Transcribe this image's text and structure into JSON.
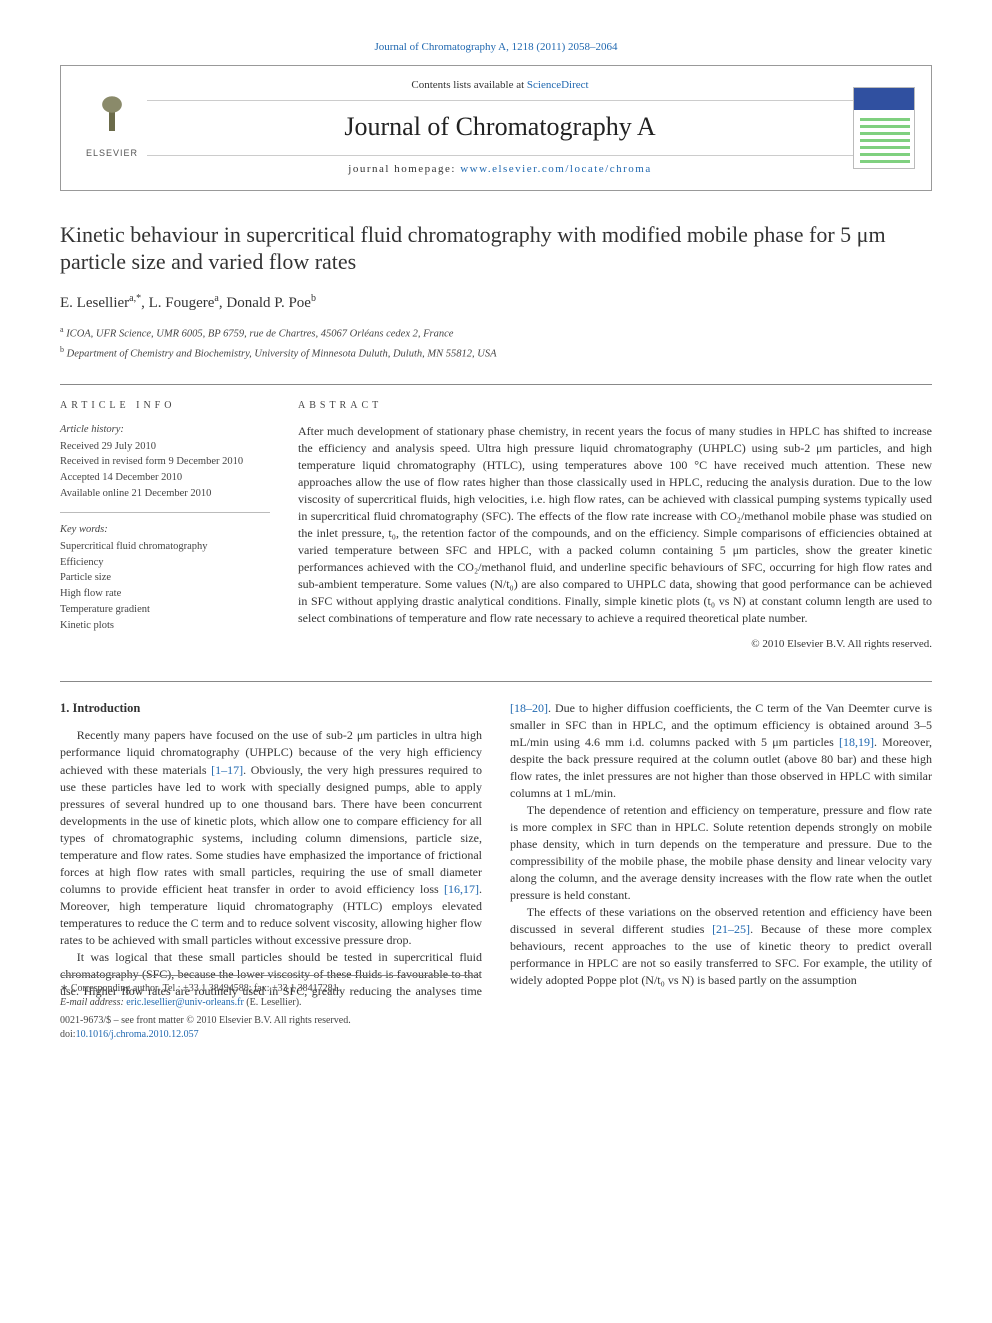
{
  "top_ref": {
    "journal": "Journal of Chromatography A",
    "citation": ", 1218 (2011) 2058–2064",
    "link_text": "Journal of Chromatography A"
  },
  "masthead": {
    "contents_prefix": "Contents lists available at ",
    "contents_link": "ScienceDirect",
    "journal_title": "Journal of Chromatography A",
    "homepage_prefix": "journal homepage: ",
    "homepage_link": "www.elsevier.com/locate/chroma",
    "elsevier_label": "ELSEVIER"
  },
  "article": {
    "title": "Kinetic behaviour in supercritical fluid chromatography with modified mobile phase for 5 μm particle size and varied flow rates",
    "authors_html": "E. Lesellier",
    "authors": [
      {
        "name": "E. Lesellier",
        "marks": "a,*"
      },
      {
        "name": "L. Fougere",
        "marks": "a"
      },
      {
        "name": "Donald P. Poe",
        "marks": "b"
      }
    ],
    "affiliations": [
      {
        "mark": "a",
        "text": "ICOA, UFR Science, UMR 6005, BP 6759, rue de Chartres, 45067 Orléans cedex 2, France"
      },
      {
        "mark": "b",
        "text": "Department of Chemistry and Biochemistry, University of Minnesota Duluth, Duluth, MN 55812, USA"
      }
    ]
  },
  "article_info": {
    "heading": "article info",
    "history_label": "Article history:",
    "history": [
      "Received 29 July 2010",
      "Received in revised form 9 December 2010",
      "Accepted 14 December 2010",
      "Available online 21 December 2010"
    ],
    "keywords_label": "Key words:",
    "keywords": [
      "Supercritical fluid chromatography",
      "Efficiency",
      "Particle size",
      "High flow rate",
      "Temperature gradient",
      "Kinetic plots"
    ]
  },
  "abstract": {
    "heading": "abstract",
    "text": "After much development of stationary phase chemistry, in recent years the focus of many studies in HPLC has shifted to increase the efficiency and analysis speed. Ultra high pressure liquid chromatography (UHPLC) using sub-2 μm particles, and high temperature liquid chromatography (HTLC), using temperatures above 100 °C have received much attention. These new approaches allow the use of flow rates higher than those classically used in HPLC, reducing the analysis duration. Due to the low viscosity of supercritical fluids, high velocities, i.e. high flow rates, can be achieved with classical pumping systems typically used in supercritical fluid chromatography (SFC). The effects of the flow rate increase with CO₂/methanol mobile phase was studied on the inlet pressure, t₀, the retention factor of the compounds, and on the efficiency. Simple comparisons of efficiencies obtained at varied temperature between SFC and HPLC, with a packed column containing 5 μm particles, show the greater kinetic performances achieved with the CO₂/methanol fluid, and underline specific behaviours of SFC, occurring for high flow rates and sub-ambient temperature. Some values (N/t₀) are also compared to UHPLC data, showing that good performance can be achieved in SFC without applying drastic analytical conditions. Finally, simple kinetic plots (t₀ vs N) at constant column length are used to select combinations of temperature and flow rate necessary to achieve a required theoretical plate number.",
    "copyright": "© 2010 Elsevier B.V. All rights reserved."
  },
  "body": {
    "section_number": "1.",
    "section_title": "Introduction",
    "p1": "Recently many papers have focused on the use of sub-2 μm particles in ultra high performance liquid chromatography (UHPLC) because of the very high efficiency achieved with these materials ",
    "p1_ref": "[1–17]",
    "p1b": ". Obviously, the very high pressures required to use these particles have led to work with specially designed pumps, able to apply pressures of several hundred up to one thousand bars. There have been concurrent developments in the use of kinetic plots, which allow one to compare efficiency for all types of chromatographic systems, including column dimensions, particle size, temperature and flow rates. Some studies have emphasized the importance of frictional forces at high flow rates with small particles, requiring the use of small diameter columns to provide efficient heat transfer in order to avoid efficiency loss ",
    "p1_ref2": "[16,17]",
    "p1c": ". Moreover, high temperature liquid chromatography (HTLC) employs elevated temperatures to reduce the C term and to reduce solvent viscosity, allowing higher flow rates to be achieved with small particles without excessive pressure drop.",
    "p2a": "It was logical that these small particles should be tested in supercritical fluid chromatography (SFC), because the lower viscosity of these fluids is favourable to that use. Higher flow rates are routinely used in SFC, greatly reducing the analyses time ",
    "p2_ref": "[18–20]",
    "p2b": ". Due to higher diffusion coefficients, the C term of the Van Deemter curve is smaller in SFC than in HPLC, and the optimum efficiency is obtained around 3–5 mL/min using 4.6 mm i.d. columns packed with 5 μm particles ",
    "p2_ref2": "[18,19]",
    "p2c": ". Moreover, despite the back pressure required at the column outlet (above 80 bar) and these high flow rates, the inlet pressures are not higher than those observed in HPLC with similar columns at 1 mL/min.",
    "p3": "The dependence of retention and efficiency on temperature, pressure and flow rate is more complex in SFC than in HPLC. Solute retention depends strongly on mobile phase density, which in turn depends on the temperature and pressure. Due to the compressibility of the mobile phase, the mobile phase density and linear velocity vary along the column, and the average density increases with the flow rate when the outlet pressure is held constant.",
    "p4a": "The effects of these variations on the observed retention and efficiency have been discussed in several different studies ",
    "p4_ref": "[21–25]",
    "p4b": ". Because of these more complex behaviours, recent approaches to the use of kinetic theory to predict overall performance in HPLC are not so easily transferred to SFC. For example, the utility of widely adopted Poppe plot (N/t₀ vs N) is based partly on the assumption"
  },
  "footnote": {
    "corr": "Corresponding author. Tel.: +33 1 38494588; fax: +33 1 38417281.",
    "email_label": "E-mail address:",
    "email": "eric.lesellier@univ-orleans.fr",
    "email_who": " (E. Lesellier)."
  },
  "bottommatter": {
    "line1": "0021-9673/$ – see front matter © 2010 Elsevier B.V. All rights reserved.",
    "doi_label": "doi:",
    "doi": "10.1016/j.chroma.2010.12.057"
  },
  "colors": {
    "link": "#2068b0",
    "text": "#333333",
    "rule": "#888888"
  }
}
